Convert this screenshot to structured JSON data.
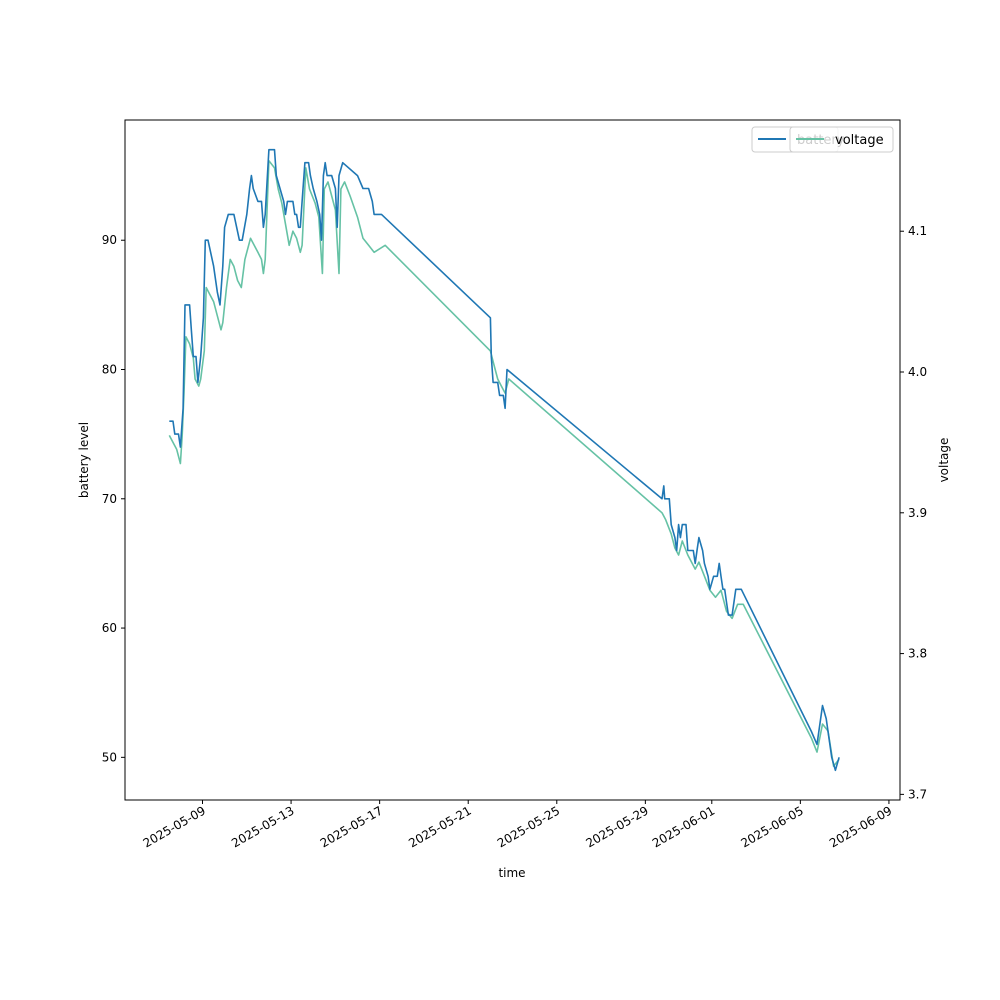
{
  "chart_data": {
    "type": "line",
    "xlabel": "time",
    "ylabel_left": "battery level",
    "ylabel_right": "voltage",
    "x_ticks": [
      "2025-05-09",
      "2025-05-13",
      "2025-05-17",
      "2025-05-21",
      "2025-05-25",
      "2025-05-29",
      "2025-06-01",
      "2025-06-05",
      "2025-06-09"
    ],
    "x_range": [
      "2025-05-05T12:00",
      "2025-06-09T12:00"
    ],
    "y_left_ticks": [
      50,
      60,
      70,
      80,
      90
    ],
    "y_left_range": [
      46.7,
      99.3
    ],
    "y_right_ticks": [
      3.7,
      3.8,
      3.9,
      4.0,
      4.1
    ],
    "y_right_range": [
      3.696,
      4.179
    ],
    "legend_placement": "top-right",
    "series": [
      {
        "name": "battery",
        "axis": "left",
        "color": "#1f77b4",
        "points": [
          [
            "2025-05-07T12:00",
            76
          ],
          [
            "2025-05-07T16:00",
            76
          ],
          [
            "2025-05-07T18:00",
            75
          ],
          [
            "2025-05-07T22:00",
            75
          ],
          [
            "2025-05-08T00:00",
            74
          ],
          [
            "2025-05-08T03:00",
            77
          ],
          [
            "2025-05-08T05:00",
            85
          ],
          [
            "2025-05-08T10:00",
            85
          ],
          [
            "2025-05-08T12:00",
            83
          ],
          [
            "2025-05-08T14:00",
            81
          ],
          [
            "2025-05-08T17:00",
            81
          ],
          [
            "2025-05-08T19:00",
            79
          ],
          [
            "2025-05-08T22:00",
            81
          ],
          [
            "2025-05-09T01:00",
            84
          ],
          [
            "2025-05-09T03:00",
            90
          ],
          [
            "2025-05-09T06:00",
            90
          ],
          [
            "2025-05-09T12:00",
            88
          ],
          [
            "2025-05-09T16:00",
            86
          ],
          [
            "2025-05-09T19:00",
            85
          ],
          [
            "2025-05-09T22:00",
            88
          ],
          [
            "2025-05-10T00:00",
            91
          ],
          [
            "2025-05-10T04:00",
            92
          ],
          [
            "2025-05-10T10:00",
            92
          ],
          [
            "2025-05-10T16:00",
            90
          ],
          [
            "2025-05-10T19:00",
            90
          ],
          [
            "2025-05-11T00:00",
            92
          ],
          [
            "2025-05-11T03:00",
            94
          ],
          [
            "2025-05-11T05:00",
            95
          ],
          [
            "2025-05-11T07:00",
            94
          ],
          [
            "2025-05-11T12:00",
            93
          ],
          [
            "2025-05-11T16:00",
            93
          ],
          [
            "2025-05-11T18:00",
            91
          ],
          [
            "2025-05-11T20:00",
            92
          ],
          [
            "2025-05-12T00:00",
            97
          ],
          [
            "2025-05-12T06:00",
            97
          ],
          [
            "2025-05-12T08:00",
            95
          ],
          [
            "2025-05-12T12:00",
            94
          ],
          [
            "2025-05-12T16:00",
            93
          ],
          [
            "2025-05-12T18:00",
            92
          ],
          [
            "2025-05-12T20:00",
            93
          ],
          [
            "2025-05-13T02:00",
            93
          ],
          [
            "2025-05-13T04:00",
            92
          ],
          [
            "2025-05-13T06:00",
            92
          ],
          [
            "2025-05-13T08:00",
            91
          ],
          [
            "2025-05-13T10:00",
            91
          ],
          [
            "2025-05-13T12:00",
            93
          ],
          [
            "2025-05-13T15:00",
            96
          ],
          [
            "2025-05-13T19:00",
            96
          ],
          [
            "2025-05-13T21:00",
            95
          ],
          [
            "2025-05-14T00:00",
            94
          ],
          [
            "2025-05-14T04:00",
            93
          ],
          [
            "2025-05-14T07:00",
            92
          ],
          [
            "2025-05-14T09:00",
            90
          ],
          [
            "2025-05-14T11:00",
            95
          ],
          [
            "2025-05-14T13:00",
            96
          ],
          [
            "2025-05-14T15:00",
            95
          ],
          [
            "2025-05-14T20:00",
            95
          ],
          [
            "2025-05-15T00:00",
            94
          ],
          [
            "2025-05-15T02:00",
            91
          ],
          [
            "2025-05-15T04:00",
            95
          ],
          [
            "2025-05-15T08:00",
            96
          ],
          [
            "2025-05-16T00:00",
            95
          ],
          [
            "2025-05-16T06:00",
            94
          ],
          [
            "2025-05-16T12:00",
            94
          ],
          [
            "2025-05-16T16:00",
            93
          ],
          [
            "2025-05-16T18:00",
            92
          ],
          [
            "2025-05-17T02:00",
            92
          ],
          [
            "2025-05-22T00:00",
            84
          ],
          [
            "2025-05-22T01:00",
            81
          ],
          [
            "2025-05-22T03:00",
            79
          ],
          [
            "2025-05-22T08:00",
            79
          ],
          [
            "2025-05-22T10:00",
            78
          ],
          [
            "2025-05-22T14:00",
            78
          ],
          [
            "2025-05-22T16:00",
            77
          ],
          [
            "2025-05-22T18:00",
            80
          ],
          [
            "2025-05-29T18:00",
            70
          ],
          [
            "2025-05-29T20:00",
            71
          ],
          [
            "2025-05-29T21:00",
            70
          ],
          [
            "2025-05-30T02:00",
            70
          ],
          [
            "2025-05-30T04:00",
            68
          ],
          [
            "2025-05-30T08:00",
            67
          ],
          [
            "2025-05-30T10:00",
            66
          ],
          [
            "2025-05-30T12:00",
            68
          ],
          [
            "2025-05-30T14:00",
            67
          ],
          [
            "2025-05-30T16:00",
            68
          ],
          [
            "2025-05-30T20:00",
            68
          ],
          [
            "2025-05-30T22:00",
            66
          ],
          [
            "2025-05-31T04:00",
            66
          ],
          [
            "2025-05-31T06:00",
            65
          ],
          [
            "2025-05-31T08:00",
            66
          ],
          [
            "2025-05-31T10:00",
            67
          ],
          [
            "2025-05-31T14:00",
            66
          ],
          [
            "2025-05-31T16:00",
            65
          ],
          [
            "2025-05-31T20:00",
            64
          ],
          [
            "2025-05-31T22:00",
            63
          ],
          [
            "2025-06-01T02:00",
            64
          ],
          [
            "2025-06-01T06:00",
            64
          ],
          [
            "2025-06-01T08:00",
            65
          ],
          [
            "2025-06-01T10:00",
            64
          ],
          [
            "2025-06-01T12:00",
            63
          ],
          [
            "2025-06-01T14:00",
            63
          ],
          [
            "2025-06-01T16:00",
            62
          ],
          [
            "2025-06-01T18:00",
            61
          ],
          [
            "2025-06-01T22:00",
            61
          ],
          [
            "2025-06-02T02:00",
            63
          ],
          [
            "2025-06-02T08:00",
            63
          ],
          [
            "2025-06-05T12:00",
            52
          ],
          [
            "2025-06-05T18:00",
            51
          ],
          [
            "2025-06-06T00:00",
            54
          ],
          [
            "2025-06-06T04:00",
            53
          ],
          [
            "2025-06-06T10:00",
            50
          ],
          [
            "2025-06-06T14:00",
            49
          ],
          [
            "2025-06-06T18:00",
            50
          ]
        ]
      },
      {
        "name": "voltage",
        "axis": "right",
        "color": "#66c2a5",
        "points": [
          [
            "2025-05-07T12:00",
            3.955
          ],
          [
            "2025-05-07T16:00",
            3.95
          ],
          [
            "2025-05-07T20:00",
            3.945
          ],
          [
            "2025-05-08T00:00",
            3.935
          ],
          [
            "2025-05-08T02:00",
            3.955
          ],
          [
            "2025-05-08T04:00",
            3.985
          ],
          [
            "2025-05-08T06:00",
            4.025
          ],
          [
            "2025-05-08T10:00",
            4.02
          ],
          [
            "2025-05-08T14:00",
            4.01
          ],
          [
            "2025-05-08T16:00",
            3.995
          ],
          [
            "2025-05-08T20:00",
            3.99
          ],
          [
            "2025-05-08T22:00",
            3.995
          ],
          [
            "2025-05-09T02:00",
            4.015
          ],
          [
            "2025-05-09T04:00",
            4.06
          ],
          [
            "2025-05-09T08:00",
            4.055
          ],
          [
            "2025-05-09T12:00",
            4.05
          ],
          [
            "2025-05-09T16:00",
            4.04
          ],
          [
            "2025-05-09T20:00",
            4.03
          ],
          [
            "2025-05-09T22:00",
            4.035
          ],
          [
            "2025-05-10T02:00",
            4.06
          ],
          [
            "2025-05-10T06:00",
            4.08
          ],
          [
            "2025-05-10T10:00",
            4.075
          ],
          [
            "2025-05-10T14:00",
            4.065
          ],
          [
            "2025-05-10T18:00",
            4.06
          ],
          [
            "2025-05-10T22:00",
            4.08
          ],
          [
            "2025-05-11T04:00",
            4.095
          ],
          [
            "2025-05-11T08:00",
            4.09
          ],
          [
            "2025-05-11T12:00",
            4.085
          ],
          [
            "2025-05-11T16:00",
            4.08
          ],
          [
            "2025-05-11T18:00",
            4.07
          ],
          [
            "2025-05-11T20:00",
            4.08
          ],
          [
            "2025-05-12T00:00",
            4.15
          ],
          [
            "2025-05-12T06:00",
            4.145
          ],
          [
            "2025-05-12T10:00",
            4.13
          ],
          [
            "2025-05-12T14:00",
            4.12
          ],
          [
            "2025-05-12T18:00",
            4.105
          ],
          [
            "2025-05-12T22:00",
            4.09
          ],
          [
            "2025-05-13T02:00",
            4.1
          ],
          [
            "2025-05-13T06:00",
            4.095
          ],
          [
            "2025-05-13T10:00",
            4.085
          ],
          [
            "2025-05-13T12:00",
            4.09
          ],
          [
            "2025-05-13T16:00",
            4.145
          ],
          [
            "2025-05-13T20:00",
            4.13
          ],
          [
            "2025-05-14T02:00",
            4.12
          ],
          [
            "2025-05-14T06:00",
            4.11
          ],
          [
            "2025-05-14T10:00",
            4.07
          ],
          [
            "2025-05-14T12:00",
            4.13
          ],
          [
            "2025-05-14T16:00",
            4.135
          ],
          [
            "2025-05-14T20:00",
            4.125
          ],
          [
            "2025-05-15T00:00",
            4.115
          ],
          [
            "2025-05-15T04:00",
            4.07
          ],
          [
            "2025-05-15T06:00",
            4.13
          ],
          [
            "2025-05-15T10:00",
            4.135
          ],
          [
            "2025-05-15T16:00",
            4.125
          ],
          [
            "2025-05-16T00:00",
            4.11
          ],
          [
            "2025-05-16T06:00",
            4.095
          ],
          [
            "2025-05-16T12:00",
            4.09
          ],
          [
            "2025-05-16T18:00",
            4.085
          ],
          [
            "2025-05-17T06:00",
            4.09
          ],
          [
            "2025-05-22T00:00",
            4.015
          ],
          [
            "2025-05-22T04:00",
            4.005
          ],
          [
            "2025-05-22T08:00",
            3.995
          ],
          [
            "2025-05-22T12:00",
            3.99
          ],
          [
            "2025-05-22T16:00",
            3.985
          ],
          [
            "2025-05-22T20:00",
            3.995
          ],
          [
            "2025-05-29T18:00",
            3.9
          ],
          [
            "2025-05-29T22:00",
            3.895
          ],
          [
            "2025-05-30T04:00",
            3.885
          ],
          [
            "2025-05-30T08:00",
            3.875
          ],
          [
            "2025-05-30T12:00",
            3.87
          ],
          [
            "2025-05-30T16:00",
            3.88
          ],
          [
            "2025-05-30T22:00",
            3.87
          ],
          [
            "2025-05-31T06:00",
            3.86
          ],
          [
            "2025-05-31T10:00",
            3.865
          ],
          [
            "2025-05-31T16:00",
            3.855
          ],
          [
            "2025-05-31T22:00",
            3.845
          ],
          [
            "2025-06-01T04:00",
            3.84
          ],
          [
            "2025-06-01T10:00",
            3.845
          ],
          [
            "2025-06-01T16:00",
            3.83
          ],
          [
            "2025-06-01T22:00",
            3.825
          ],
          [
            "2025-06-02T04:00",
            3.835
          ],
          [
            "2025-06-02T10:00",
            3.835
          ],
          [
            "2025-06-05T12:00",
            3.74
          ],
          [
            "2025-06-05T18:00",
            3.73
          ],
          [
            "2025-06-06T00:00",
            3.75
          ],
          [
            "2025-06-06T06:00",
            3.745
          ],
          [
            "2025-06-06T12:00",
            3.72
          ],
          [
            "2025-06-06T18:00",
            3.725
          ]
        ]
      }
    ]
  }
}
